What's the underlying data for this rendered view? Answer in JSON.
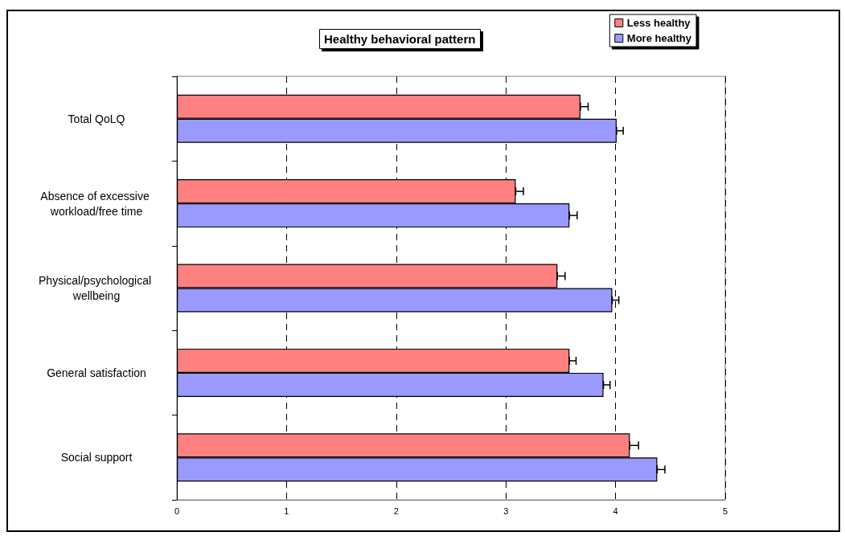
{
  "chart_data": {
    "type": "bar",
    "orientation": "horizontal",
    "title": "Healthy behavioral pattern",
    "categories": [
      "Total QoLQ",
      "Absence of excessive workload/free time",
      "Physical/psychological wellbeing",
      "General satisfaction",
      "Social support"
    ],
    "series": [
      {
        "name": "Less healthy",
        "color": "#ff8080",
        "values": [
          3.68,
          3.09,
          3.47,
          3.58,
          4.13
        ],
        "errors": [
          [
            3.68,
            3.75
          ],
          [
            3.09,
            3.16
          ],
          [
            3.47,
            3.54
          ],
          [
            3.58,
            3.64
          ],
          [
            4.13,
            4.21
          ]
        ]
      },
      {
        "name": "More healthy",
        "color": "#9999ff",
        "values": [
          4.01,
          3.58,
          3.97,
          3.89,
          4.38
        ],
        "errors": [
          [
            4.01,
            4.07
          ],
          [
            3.58,
            3.65
          ],
          [
            3.97,
            4.03
          ],
          [
            3.89,
            3.95
          ],
          [
            4.38,
            4.45
          ]
        ]
      }
    ],
    "xlim": [
      0,
      5
    ],
    "xticks": [
      0,
      1,
      2,
      3,
      4,
      5
    ],
    "grid": "x",
    "legend": "top right"
  }
}
